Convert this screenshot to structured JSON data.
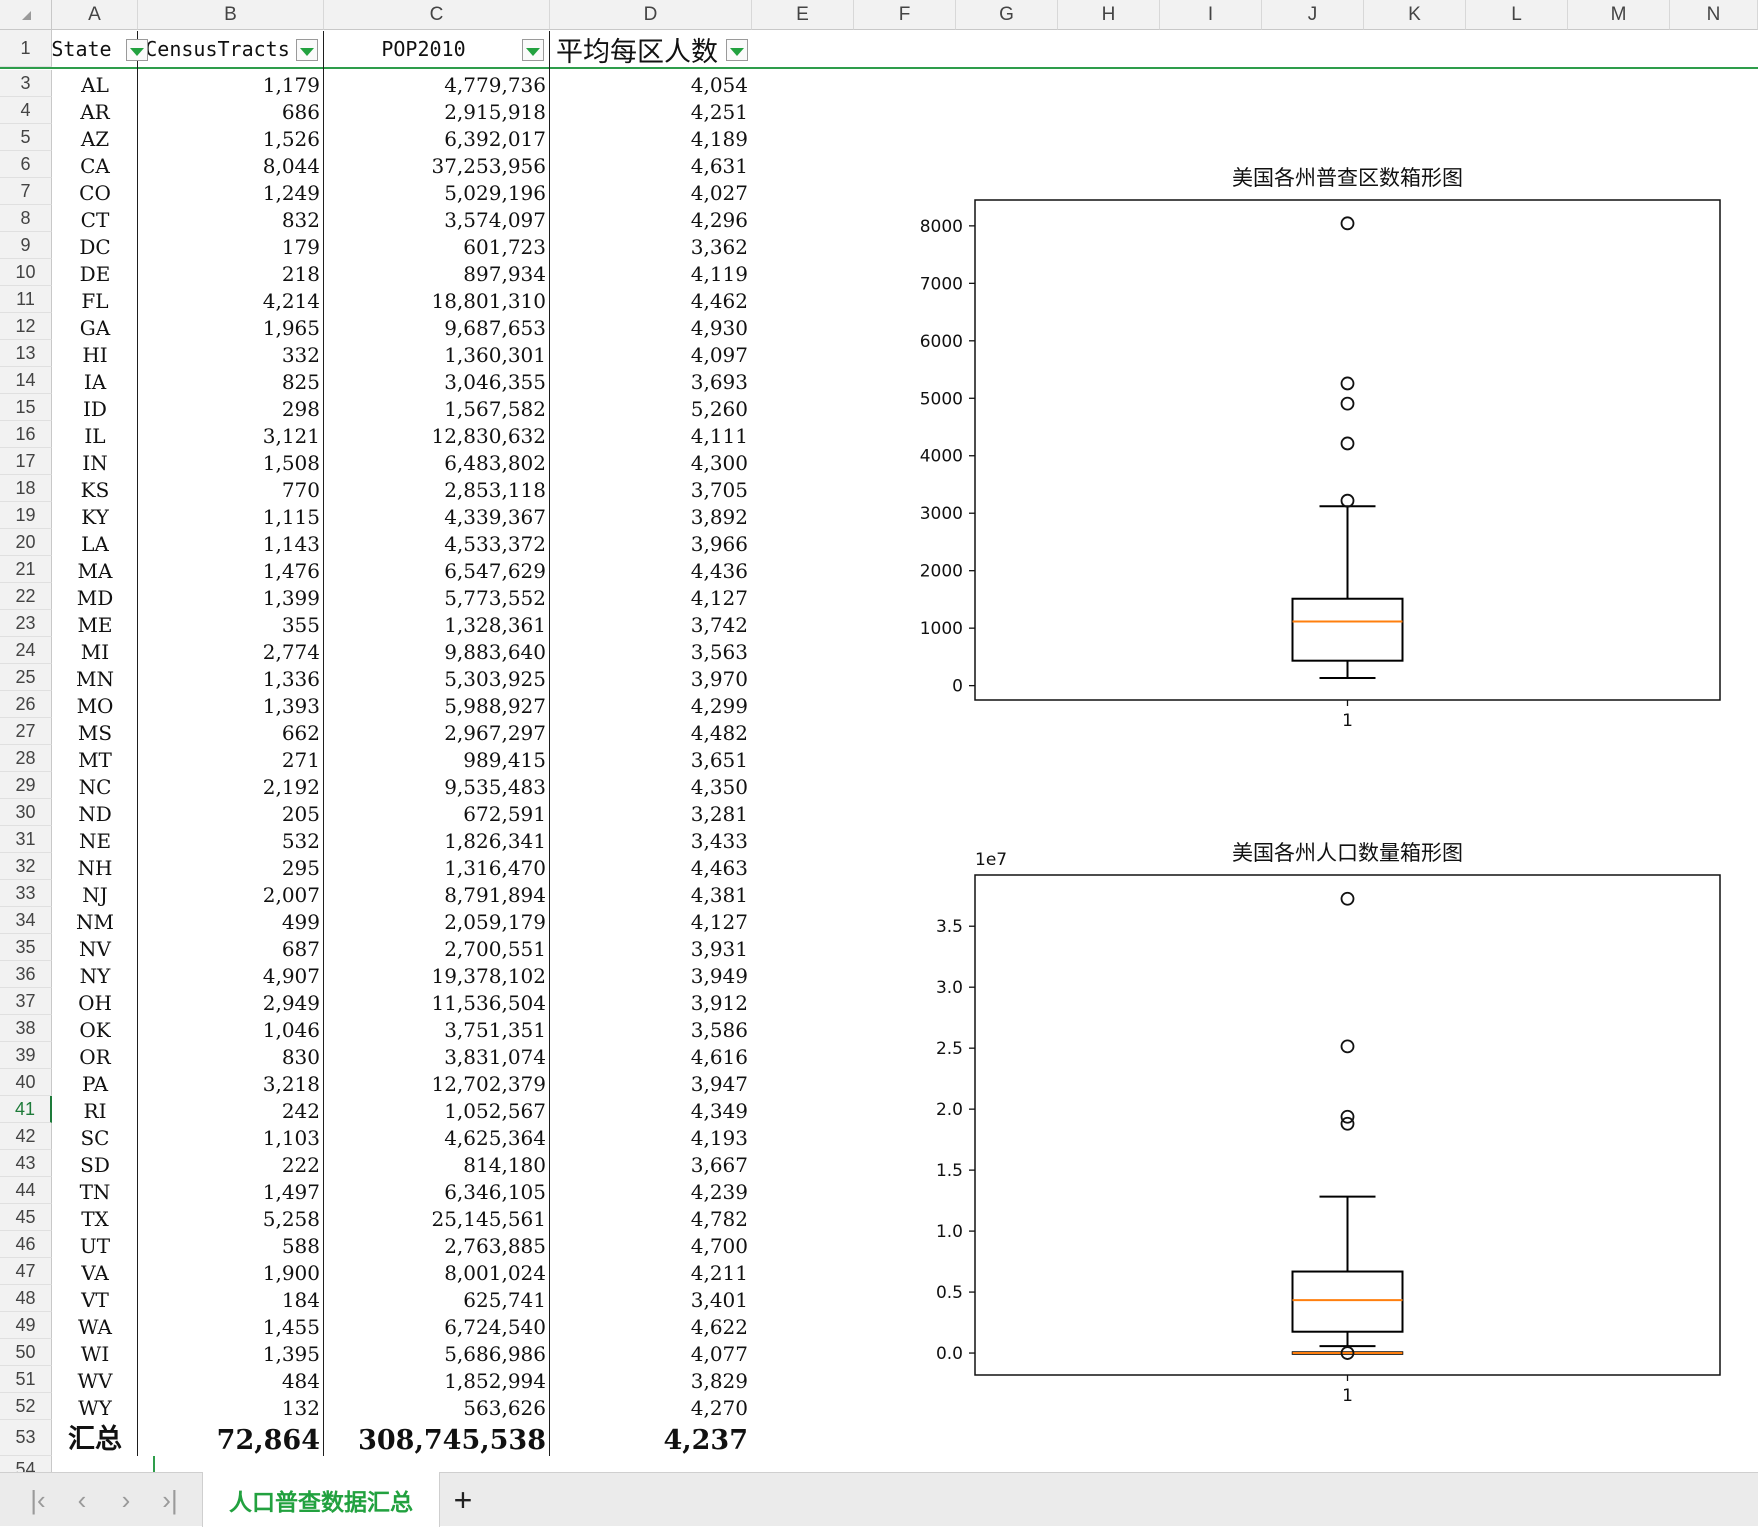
{
  "columns": [
    "A",
    "B",
    "C",
    "D",
    "E",
    "F",
    "G",
    "H",
    "I",
    "J",
    "K",
    "L",
    "M",
    "N"
  ],
  "header_row_number": "1",
  "headers": {
    "state": "State",
    "tracts": "CensusTracts",
    "pop": "POP2010",
    "avg": "平均每区人数"
  },
  "rows": [
    {
      "n": "3",
      "state": "AL",
      "tracts": "1,179",
      "pop": "4,779,736",
      "avg": "4,054"
    },
    {
      "n": "4",
      "state": "AR",
      "tracts": "686",
      "pop": "2,915,918",
      "avg": "4,251"
    },
    {
      "n": "5",
      "state": "AZ",
      "tracts": "1,526",
      "pop": "6,392,017",
      "avg": "4,189"
    },
    {
      "n": "6",
      "state": "CA",
      "tracts": "8,044",
      "pop": "37,253,956",
      "avg": "4,631"
    },
    {
      "n": "7",
      "state": "CO",
      "tracts": "1,249",
      "pop": "5,029,196",
      "avg": "4,027"
    },
    {
      "n": "8",
      "state": "CT",
      "tracts": "832",
      "pop": "3,574,097",
      "avg": "4,296"
    },
    {
      "n": "9",
      "state": "DC",
      "tracts": "179",
      "pop": "601,723",
      "avg": "3,362"
    },
    {
      "n": "10",
      "state": "DE",
      "tracts": "218",
      "pop": "897,934",
      "avg": "4,119"
    },
    {
      "n": "11",
      "state": "FL",
      "tracts": "4,214",
      "pop": "18,801,310",
      "avg": "4,462"
    },
    {
      "n": "12",
      "state": "GA",
      "tracts": "1,965",
      "pop": "9,687,653",
      "avg": "4,930"
    },
    {
      "n": "13",
      "state": "HI",
      "tracts": "332",
      "pop": "1,360,301",
      "avg": "4,097"
    },
    {
      "n": "14",
      "state": "IA",
      "tracts": "825",
      "pop": "3,046,355",
      "avg": "3,693"
    },
    {
      "n": "15",
      "state": "ID",
      "tracts": "298",
      "pop": "1,567,582",
      "avg": "5,260"
    },
    {
      "n": "16",
      "state": "IL",
      "tracts": "3,121",
      "pop": "12,830,632",
      "avg": "4,111"
    },
    {
      "n": "17",
      "state": "IN",
      "tracts": "1,508",
      "pop": "6,483,802",
      "avg": "4,300"
    },
    {
      "n": "18",
      "state": "KS",
      "tracts": "770",
      "pop": "2,853,118",
      "avg": "3,705"
    },
    {
      "n": "19",
      "state": "KY",
      "tracts": "1,115",
      "pop": "4,339,367",
      "avg": "3,892"
    },
    {
      "n": "20",
      "state": "LA",
      "tracts": "1,143",
      "pop": "4,533,372",
      "avg": "3,966"
    },
    {
      "n": "21",
      "state": "MA",
      "tracts": "1,476",
      "pop": "6,547,629",
      "avg": "4,436"
    },
    {
      "n": "22",
      "state": "MD",
      "tracts": "1,399",
      "pop": "5,773,552",
      "avg": "4,127"
    },
    {
      "n": "23",
      "state": "ME",
      "tracts": "355",
      "pop": "1,328,361",
      "avg": "3,742"
    },
    {
      "n": "24",
      "state": "MI",
      "tracts": "2,774",
      "pop": "9,883,640",
      "avg": "3,563"
    },
    {
      "n": "25",
      "state": "MN",
      "tracts": "1,336",
      "pop": "5,303,925",
      "avg": "3,970"
    },
    {
      "n": "26",
      "state": "MO",
      "tracts": "1,393",
      "pop": "5,988,927",
      "avg": "4,299"
    },
    {
      "n": "27",
      "state": "MS",
      "tracts": "662",
      "pop": "2,967,297",
      "avg": "4,482"
    },
    {
      "n": "28",
      "state": "MT",
      "tracts": "271",
      "pop": "989,415",
      "avg": "3,651"
    },
    {
      "n": "29",
      "state": "NC",
      "tracts": "2,192",
      "pop": "9,535,483",
      "avg": "4,350"
    },
    {
      "n": "30",
      "state": "ND",
      "tracts": "205",
      "pop": "672,591",
      "avg": "3,281"
    },
    {
      "n": "31",
      "state": "NE",
      "tracts": "532",
      "pop": "1,826,341",
      "avg": "3,433"
    },
    {
      "n": "32",
      "state": "NH",
      "tracts": "295",
      "pop": "1,316,470",
      "avg": "4,463"
    },
    {
      "n": "33",
      "state": "NJ",
      "tracts": "2,007",
      "pop": "8,791,894",
      "avg": "4,381"
    },
    {
      "n": "34",
      "state": "NM",
      "tracts": "499",
      "pop": "2,059,179",
      "avg": "4,127"
    },
    {
      "n": "35",
      "state": "NV",
      "tracts": "687",
      "pop": "2,700,551",
      "avg": "3,931"
    },
    {
      "n": "36",
      "state": "NY",
      "tracts": "4,907",
      "pop": "19,378,102",
      "avg": "3,949"
    },
    {
      "n": "37",
      "state": "OH",
      "tracts": "2,949",
      "pop": "11,536,504",
      "avg": "3,912"
    },
    {
      "n": "38",
      "state": "OK",
      "tracts": "1,046",
      "pop": "3,751,351",
      "avg": "3,586"
    },
    {
      "n": "39",
      "state": "OR",
      "tracts": "830",
      "pop": "3,831,074",
      "avg": "4,616"
    },
    {
      "n": "40",
      "state": "PA",
      "tracts": "3,218",
      "pop": "12,702,379",
      "avg": "3,947"
    },
    {
      "n": "41",
      "state": "RI",
      "tracts": "242",
      "pop": "1,052,567",
      "avg": "4,349"
    },
    {
      "n": "42",
      "state": "SC",
      "tracts": "1,103",
      "pop": "4,625,364",
      "avg": "4,193"
    },
    {
      "n": "43",
      "state": "SD",
      "tracts": "222",
      "pop": "814,180",
      "avg": "3,667"
    },
    {
      "n": "44",
      "state": "TN",
      "tracts": "1,497",
      "pop": "6,346,105",
      "avg": "4,239"
    },
    {
      "n": "45",
      "state": "TX",
      "tracts": "5,258",
      "pop": "25,145,561",
      "avg": "4,782"
    },
    {
      "n": "46",
      "state": "UT",
      "tracts": "588",
      "pop": "2,763,885",
      "avg": "4,700"
    },
    {
      "n": "47",
      "state": "VA",
      "tracts": "1,900",
      "pop": "8,001,024",
      "avg": "4,211"
    },
    {
      "n": "48",
      "state": "VT",
      "tracts": "184",
      "pop": "625,741",
      "avg": "3,401"
    },
    {
      "n": "49",
      "state": "WA",
      "tracts": "1,455",
      "pop": "6,724,540",
      "avg": "4,622"
    },
    {
      "n": "50",
      "state": "WI",
      "tracts": "1,395",
      "pop": "5,686,986",
      "avg": "4,077"
    },
    {
      "n": "51",
      "state": "WV",
      "tracts": "484",
      "pop": "1,852,994",
      "avg": "3,829"
    },
    {
      "n": "52",
      "state": "WY",
      "tracts": "132",
      "pop": "563,626",
      "avg": "4,270"
    }
  ],
  "total_row": {
    "n": "53",
    "label": "汇总",
    "tracts": "72,864",
    "pop": "308,745,538",
    "avg": "4,237"
  },
  "next_row_number": "54",
  "active_row": "41",
  "accent_color": "#22a13f",
  "chart_data": [
    {
      "type": "box",
      "title": "美国各州普查区数箱形图",
      "categories": [
        "1"
      ],
      "yticks": [
        0,
        1000,
        2000,
        3000,
        4000,
        5000,
        6000,
        7000,
        8000
      ],
      "ytick_labels": [
        "0",
        "1000",
        "2000",
        "3000",
        "4000",
        "5000",
        "6000",
        "7000",
        "8000"
      ],
      "ylim": [
        -250,
        8450
      ],
      "box": {
        "whislo": 132,
        "q1": 434,
        "med": 1115,
        "q3": 1512,
        "whishi": 3121
      },
      "fliers": [
        3218,
        4214,
        4907,
        5258,
        8044
      ],
      "box_color": "#000000",
      "median_color": "#ff7f0e"
    },
    {
      "type": "box",
      "title": "美国各州人口数量箱形图",
      "offset_label": "1e7",
      "categories": [
        "1"
      ],
      "yticks": [
        0,
        0.5,
        1.0,
        1.5,
        2.0,
        2.5,
        3.0,
        3.5
      ],
      "ytick_labels": [
        "0.0",
        "0.5",
        "1.0",
        "1.5",
        "2.0",
        "2.5",
        "3.0",
        "3.5"
      ],
      "ylim": [
        -0.18,
        3.92
      ],
      "box": {
        "whislo": 0.0563626,
        "q1": 0.175,
        "med": 0.4339367,
        "q3": 0.6684,
        "whishi": 1.2830632
      },
      "fliers": [
        1.880131,
        1.9378102,
        2.5145561,
        3.7253956,
        0.0
      ],
      "zero_box_line": 0.0,
      "box_color": "#000000",
      "median_color": "#ff7f0e"
    }
  ],
  "sheet_tabs": {
    "active": "人口普查数据汇总",
    "add": "+"
  },
  "nav": {
    "first": "|‹",
    "prev": "‹",
    "next": "›",
    "last": "›|"
  }
}
